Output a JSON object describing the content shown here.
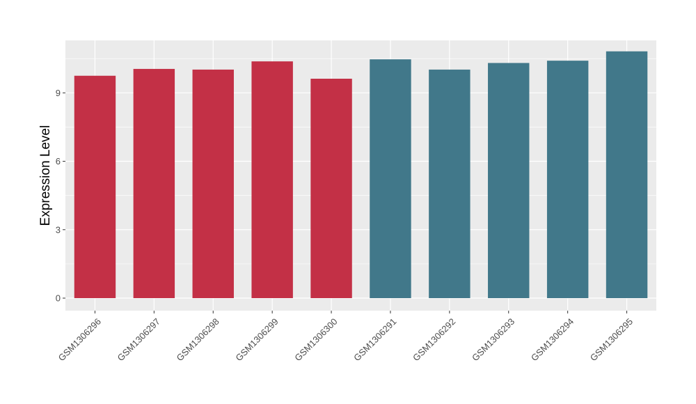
{
  "chart_data": {
    "type": "bar",
    "title": "",
    "xlabel": "",
    "ylabel": "Expression Level",
    "ylim": [
      -0.55,
      11.3
    ],
    "yticks": [
      0,
      3,
      6,
      9
    ],
    "ytick_labels": [
      "0",
      "3",
      "6",
      "9"
    ],
    "grid": true,
    "legend": "none",
    "categories": [
      "GSM1306296",
      "GSM1306297",
      "GSM1306298",
      "GSM1306299",
      "GSM1306300",
      "GSM1306291",
      "GSM1306292",
      "GSM1306293",
      "GSM1306294",
      "GSM1306295"
    ],
    "values": [
      9.75,
      10.05,
      10.02,
      10.38,
      9.62,
      10.47,
      10.02,
      10.31,
      10.41,
      10.82
    ],
    "bar_colors": [
      "#C33046",
      "#C33046",
      "#C33046",
      "#C33046",
      "#C33046",
      "#41788A",
      "#41788A",
      "#41788A",
      "#41788A",
      "#41788A"
    ]
  },
  "colors": {
    "panel_background": "#EBEBEB",
    "grid_major": "#FFFFFF",
    "group_a": "#C33046",
    "group_b": "#41788A"
  }
}
